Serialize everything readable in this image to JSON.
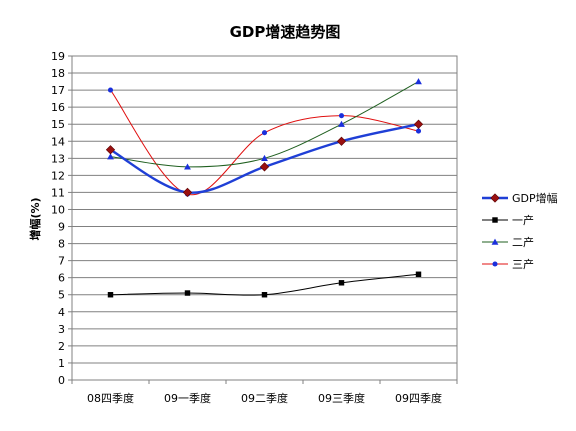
{
  "chart_data": {
    "type": "line",
    "title": "GDP增速趋势图",
    "xlabel": "",
    "ylabel": "增幅(%)",
    "ylim": [
      0,
      19
    ],
    "ytick_step": 1,
    "grid": "horizontal",
    "legend_position": "right",
    "categories": [
      "08四季度",
      "09一季度",
      "09二季度",
      "09三季度",
      "09四季度"
    ],
    "series": [
      {
        "name": "GDP增幅",
        "values": [
          13.5,
          11.0,
          12.5,
          14.0,
          15.0
        ],
        "color": "#1f3fd6",
        "marker": "diamond",
        "marker_color": "#9a1010",
        "line_width": 2.4
      },
      {
        "name": "一产",
        "values": [
          5.0,
          5.1,
          5.0,
          5.7,
          6.2
        ],
        "color": "#000000",
        "marker": "square",
        "marker_color": "#000000",
        "line_width": 1
      },
      {
        "name": "二产",
        "values": [
          13.1,
          12.5,
          13.0,
          15.0,
          17.5
        ],
        "color": "#1f5f1f",
        "marker": "triangle",
        "marker_color": "#1a2fdc",
        "line_width": 1
      },
      {
        "name": "三产",
        "values": [
          17.0,
          10.9,
          14.5,
          15.5,
          14.6
        ],
        "color": "#e01010",
        "marker": "circle",
        "marker_color": "#1a2fdc",
        "line_width": 1
      }
    ]
  }
}
